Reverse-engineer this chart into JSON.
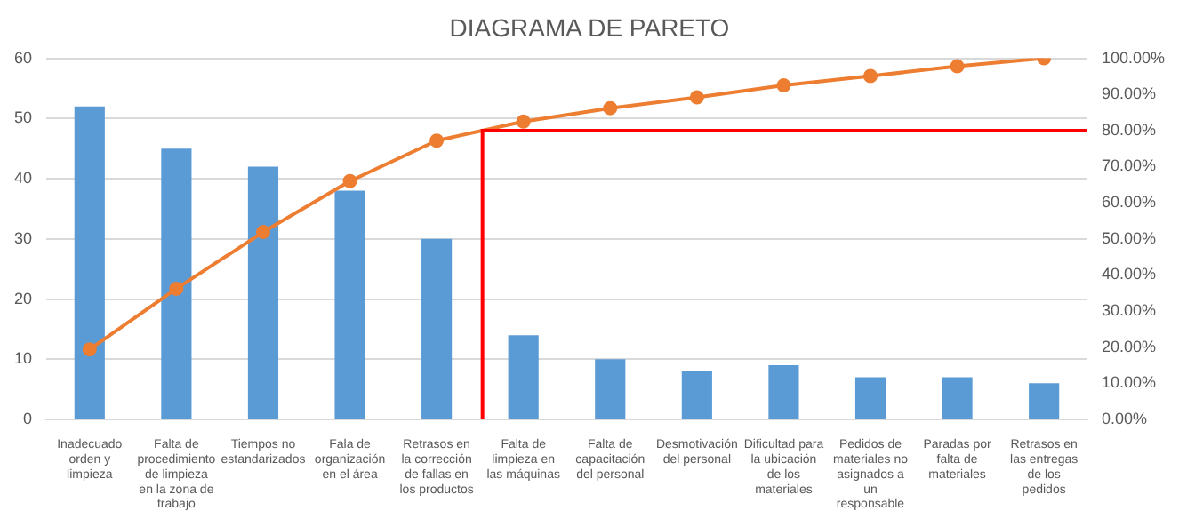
{
  "chart_data": {
    "type": "bar",
    "title": "DIAGRAMA DE PARETO",
    "categories": [
      "Inadecuado orden y limpieza",
      "Falta de procedimiento de limpieza en la zona de trabajo",
      "Tiempos no estandarizados",
      "Fala de organización en el área",
      "Retrasos en la corrección de fallas en los productos",
      "Falta de limpieza en las máquinas",
      "Falta de capacitación del personal",
      "Desmotivación del personal",
      "Dificultad para la ubicación de los materiales",
      "Pedidos de materiales no asignados a un responsable",
      "Paradas por falta de materiales",
      "Retrasos en las entregas de los pedidos"
    ],
    "series": [
      {
        "type": "bar",
        "color": "#5b9bd5",
        "values": [
          52,
          45,
          42,
          38,
          30,
          14,
          10,
          8,
          9,
          7,
          7,
          6
        ]
      },
      {
        "type": "line",
        "axis": "y2",
        "color": "#ed7d31",
        "marker": "circle",
        "values": [
          19.4,
          36.2,
          51.9,
          66.0,
          77.2,
          82.5,
          86.2,
          89.2,
          92.5,
          95.1,
          97.8,
          100
        ]
      }
    ],
    "ylim": [
      0,
      60
    ],
    "yticks": [
      0,
      10,
      20,
      30,
      40,
      50,
      60
    ],
    "y2lim": [
      0,
      100
    ],
    "y2ticks": [
      {
        "value": 0,
        "label": "0.00%"
      },
      {
        "value": 10,
        "label": "10.00%"
      },
      {
        "value": 20,
        "label": "20.00%"
      },
      {
        "value": 30,
        "label": "30.00%"
      },
      {
        "value": 40,
        "label": "40.00%"
      },
      {
        "value": 50,
        "label": "50.00%"
      },
      {
        "value": 60,
        "label": "60.00%"
      },
      {
        "value": 70,
        "label": "70.00%"
      },
      {
        "value": 80,
        "label": "80.00%"
      },
      {
        "value": 90,
        "label": "90.00%"
      },
      {
        "value": 100,
        "label": "100.00%"
      }
    ],
    "ref_lines": [
      {
        "axis": "y2",
        "value": 80,
        "color": "#ff0000"
      }
    ],
    "grid": "y",
    "legend": false
  }
}
